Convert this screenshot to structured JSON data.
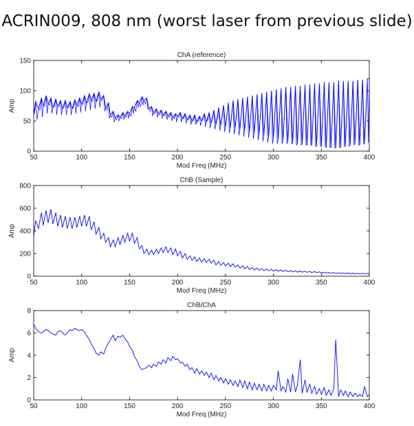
{
  "slide": {
    "title": "ACRIN009, 808 nm (worst laser from previous slide)"
  },
  "colors": {
    "series": "#0000ff",
    "axis": "#000000"
  },
  "chart_data": [
    {
      "type": "line",
      "title": "ChA (reference)",
      "xlabel": "Mod Freq (MHz)",
      "ylabel": "Amp",
      "xlim": [
        50,
        400
      ],
      "ylim": [
        0,
        150
      ],
      "xticks": [
        50,
        100,
        150,
        200,
        250,
        300,
        350,
        400
      ],
      "yticks": [
        0,
        50,
        100,
        150
      ],
      "grid": false,
      "series": [
        {
          "x": [
            50,
            52,
            55,
            58,
            60,
            63,
            65,
            68,
            70,
            73,
            75,
            78,
            80,
            83,
            85,
            88,
            90,
            93,
            95,
            98,
            100,
            103,
            105,
            108,
            110,
            113,
            115,
            118,
            120,
            123,
            125,
            128,
            130,
            133,
            135,
            138,
            140,
            143,
            145,
            148,
            150,
            153,
            155,
            158,
            160,
            163,
            165,
            168,
            170,
            173,
            175,
            178,
            180,
            183,
            185,
            188,
            190,
            193,
            195,
            198,
            200,
            203,
            205,
            208,
            210,
            213,
            215,
            218,
            220,
            223,
            225,
            228,
            230,
            233,
            235,
            238,
            240,
            243,
            245,
            248,
            250,
            253,
            255,
            258,
            260,
            263,
            265,
            268,
            270,
            273,
            275,
            278,
            280,
            283,
            285,
            288,
            290,
            293,
            295,
            298,
            300,
            303,
            305,
            308,
            310,
            313,
            315,
            318,
            320,
            323,
            325,
            328,
            330,
            333,
            335,
            338,
            340,
            343,
            345,
            348,
            350,
            353,
            355,
            358,
            360,
            363,
            365,
            368,
            370,
            373,
            375,
            378,
            380,
            383,
            385,
            388,
            390,
            393,
            395,
            398,
            400
          ],
          "y": [
            62,
            82,
            70,
            88,
            75,
            92,
            78,
            88,
            72,
            86,
            74,
            84,
            70,
            84,
            72,
            82,
            70,
            85,
            76,
            88,
            78,
            92,
            80,
            95,
            84,
            96,
            82,
            98,
            86,
            92,
            72,
            80,
            60,
            66,
            55,
            60,
            56,
            64,
            58,
            66,
            62,
            74,
            72,
            84,
            80,
            90,
            84,
            88,
            70,
            74,
            64,
            70,
            62,
            68,
            60,
            66,
            58,
            64,
            56,
            62,
            58,
            64,
            54,
            62,
            52,
            60,
            50,
            60,
            48,
            58,
            50,
            62,
            48,
            64,
            46,
            68,
            44,
            72,
            42,
            76,
            40,
            80,
            38,
            84,
            38,
            86,
            36,
            88,
            34,
            90,
            32,
            92,
            30,
            94,
            28,
            96,
            26,
            98,
            24,
            100,
            22,
            102,
            20,
            104,
            18,
            106,
            16,
            106,
            14,
            108,
            12,
            108,
            12,
            110,
            10,
            110,
            10,
            112,
            8,
            112,
            8,
            114,
            6,
            114,
            6,
            114,
            5,
            116,
            6,
            116,
            8,
            116,
            10,
            116,
            12,
            118,
            10,
            118,
            12,
            120,
            120
          ],
          "mirror_y": [
            62,
            52,
            68,
            56,
            74,
            62,
            76,
            62,
            74,
            60,
            74,
            60,
            72,
            60,
            72,
            60,
            72,
            62,
            74,
            64,
            78,
            66,
            80,
            68,
            82,
            70,
            84,
            72,
            84,
            66,
            68,
            54,
            56,
            48,
            52,
            50,
            54,
            52,
            56,
            54,
            58,
            62,
            66,
            72,
            74,
            76,
            78,
            70,
            66,
            58,
            62,
            56,
            60,
            54,
            58,
            52,
            56,
            50,
            54,
            48,
            56,
            48,
            54,
            46,
            52,
            44,
            50,
            44,
            50,
            42,
            52,
            40,
            52,
            38,
            54,
            36,
            54,
            34,
            56,
            32,
            58,
            30,
            58,
            28,
            58,
            26,
            60,
            24,
            60,
            22,
            60,
            20,
            60,
            18,
            60,
            16,
            60,
            14,
            60,
            12,
            60,
            12,
            60,
            12,
            60,
            12,
            60,
            12,
            60,
            10,
            60,
            10,
            60,
            10,
            60,
            10,
            58,
            8,
            58,
            8,
            58,
            8,
            56,
            6,
            56,
            6,
            58,
            6,
            58,
            8,
            58,
            8,
            58,
            10,
            58,
            10,
            60,
            12,
            60,
            14,
            62
          ]
        }
      ]
    },
    {
      "type": "line",
      "title": "ChB (Sample)",
      "xlabel": "Mod Freq (MHz)",
      "ylabel": "Amp",
      "xlim": [
        50,
        400
      ],
      "ylim": [
        0,
        800
      ],
      "xticks": [
        50,
        100,
        150,
        200,
        250,
        300,
        350,
        400
      ],
      "yticks": [
        0,
        200,
        400,
        600,
        800
      ],
      "grid": false,
      "series": [
        {
          "x": [
            50,
            52,
            55,
            58,
            60,
            63,
            65,
            68,
            70,
            73,
            75,
            78,
            80,
            83,
            85,
            88,
            90,
            93,
            95,
            98,
            100,
            103,
            105,
            108,
            110,
            113,
            115,
            118,
            120,
            123,
            125,
            128,
            130,
            133,
            135,
            138,
            140,
            143,
            145,
            148,
            150,
            153,
            155,
            158,
            160,
            163,
            165,
            168,
            170,
            173,
            175,
            178,
            180,
            183,
            185,
            188,
            190,
            193,
            195,
            198,
            200,
            203,
            205,
            208,
            210,
            213,
            215,
            218,
            220,
            223,
            225,
            228,
            230,
            233,
            235,
            238,
            240,
            243,
            245,
            248,
            250,
            253,
            255,
            258,
            260,
            263,
            265,
            268,
            270,
            273,
            275,
            278,
            280,
            283,
            285,
            288,
            290,
            293,
            295,
            298,
            300,
            303,
            305,
            308,
            310,
            313,
            315,
            318,
            320,
            323,
            325,
            328,
            330,
            333,
            335,
            338,
            340,
            343,
            345,
            348,
            350,
            353,
            355,
            358,
            360,
            363,
            365,
            368,
            370,
            373,
            375,
            378,
            380,
            383,
            385,
            388,
            390,
            393,
            395,
            398,
            400
          ],
          "y": [
            350,
            490,
            420,
            560,
            450,
            580,
            470,
            590,
            460,
            560,
            440,
            540,
            430,
            530,
            420,
            520,
            420,
            520,
            430,
            530,
            440,
            540,
            440,
            530,
            410,
            480,
            370,
            430,
            330,
            380,
            300,
            340,
            260,
            320,
            260,
            340,
            280,
            360,
            300,
            380,
            310,
            380,
            290,
            340,
            240,
            270,
            200,
            240,
            190,
            230,
            190,
            240,
            200,
            250,
            210,
            260,
            210,
            250,
            190,
            240,
            180,
            220,
            160,
            200,
            150,
            180,
            140,
            170,
            130,
            160,
            125,
            155,
            120,
            150,
            115,
            140,
            100,
            130,
            95,
            120,
            90,
            115,
            85,
            110,
            80,
            100,
            72,
            92,
            65,
            85,
            58,
            78,
            55,
            72,
            52,
            68,
            50,
            65,
            48,
            62,
            46,
            58,
            44,
            55,
            42,
            52,
            40,
            50,
            38,
            48,
            36,
            46,
            35,
            44,
            34,
            42,
            33,
            40,
            32,
            38,
            30,
            36,
            28,
            34,
            26,
            32,
            25,
            30,
            24,
            30,
            23,
            28,
            22,
            28,
            21,
            26,
            20,
            26,
            20,
            25,
            24
          ]
        }
      ]
    },
    {
      "type": "line",
      "title": "ChB/ChA",
      "xlabel": "Mod Freq (MHz)",
      "ylabel": "Amp",
      "xlim": [
        50,
        400
      ],
      "ylim": [
        0,
        8
      ],
      "xticks": [
        50,
        100,
        150,
        200,
        250,
        300,
        350,
        400
      ],
      "yticks": [
        0,
        2,
        4,
        6,
        8
      ],
      "grid": false,
      "series": [
        {
          "x": [
            50,
            52,
            55,
            58,
            60,
            63,
            65,
            68,
            70,
            73,
            75,
            78,
            80,
            83,
            85,
            88,
            90,
            93,
            95,
            98,
            100,
            103,
            105,
            108,
            110,
            113,
            115,
            118,
            120,
            123,
            125,
            128,
            130,
            133,
            135,
            138,
            140,
            143,
            145,
            148,
            150,
            153,
            155,
            158,
            160,
            163,
            165,
            168,
            170,
            173,
            175,
            178,
            180,
            183,
            185,
            188,
            190,
            193,
            195,
            198,
            200,
            203,
            205,
            208,
            210,
            213,
            215,
            218,
            220,
            223,
            225,
            228,
            230,
            233,
            235,
            238,
            240,
            243,
            245,
            248,
            250,
            253,
            255,
            258,
            260,
            263,
            265,
            268,
            270,
            273,
            275,
            278,
            280,
            283,
            285,
            288,
            290,
            293,
            295,
            298,
            300,
            303,
            305,
            308,
            310,
            313,
            315,
            318,
            320,
            323,
            325,
            328,
            330,
            333,
            335,
            338,
            340,
            343,
            345,
            348,
            350,
            353,
            355,
            358,
            360,
            363,
            365,
            368,
            370,
            373,
            375,
            378,
            380,
            383,
            385,
            388,
            390,
            393,
            395,
            398,
            400
          ],
          "y": [
            6.8,
            6.4,
            6.1,
            6.0,
            6.1,
            6.3,
            6.2,
            6.0,
            5.9,
            5.8,
            6.1,
            6.2,
            6.0,
            5.8,
            6.0,
            6.3,
            6.2,
            6.4,
            6.3,
            6.2,
            6.3,
            6.1,
            5.8,
            5.4,
            5.0,
            4.6,
            4.2,
            4.0,
            4.3,
            4.1,
            4.6,
            5.1,
            5.4,
            5.8,
            5.3,
            5.7,
            5.6,
            5.8,
            5.5,
            5.2,
            4.8,
            4.4,
            3.9,
            3.5,
            3.0,
            2.7,
            2.8,
            2.9,
            3.1,
            2.9,
            3.2,
            3.0,
            3.4,
            3.2,
            3.6,
            3.3,
            3.8,
            3.5,
            3.9,
            3.6,
            3.7,
            3.3,
            3.4,
            3.0,
            3.2,
            2.7,
            2.9,
            2.4,
            2.8,
            2.3,
            2.6,
            2.2,
            2.5,
            2.0,
            2.4,
            1.8,
            2.2,
            1.7,
            2.0,
            1.5,
            1.9,
            1.4,
            1.8,
            1.3,
            1.7,
            1.2,
            1.8,
            1.1,
            1.7,
            1.0,
            1.6,
            0.9,
            1.5,
            0.9,
            1.4,
            0.8,
            1.4,
            0.8,
            1.3,
            0.8,
            1.3,
            0.9,
            2.6,
            0.8,
            1.2,
            0.7,
            1.9,
            0.7,
            2.3,
            0.7,
            1.3,
            3.6,
            0.6,
            1.8,
            0.7,
            1.4,
            0.6,
            1.2,
            0.5,
            1.0,
            0.5,
            1.1,
            0.4,
            0.9,
            0.4,
            1.0,
            5.4,
            0.3,
            0.9,
            0.4,
            0.8,
            0.3,
            0.7,
            0.3,
            0.6,
            0.3,
            0.5,
            0.3,
            1.2,
            0.3,
            0.5
          ]
        }
      ]
    }
  ]
}
